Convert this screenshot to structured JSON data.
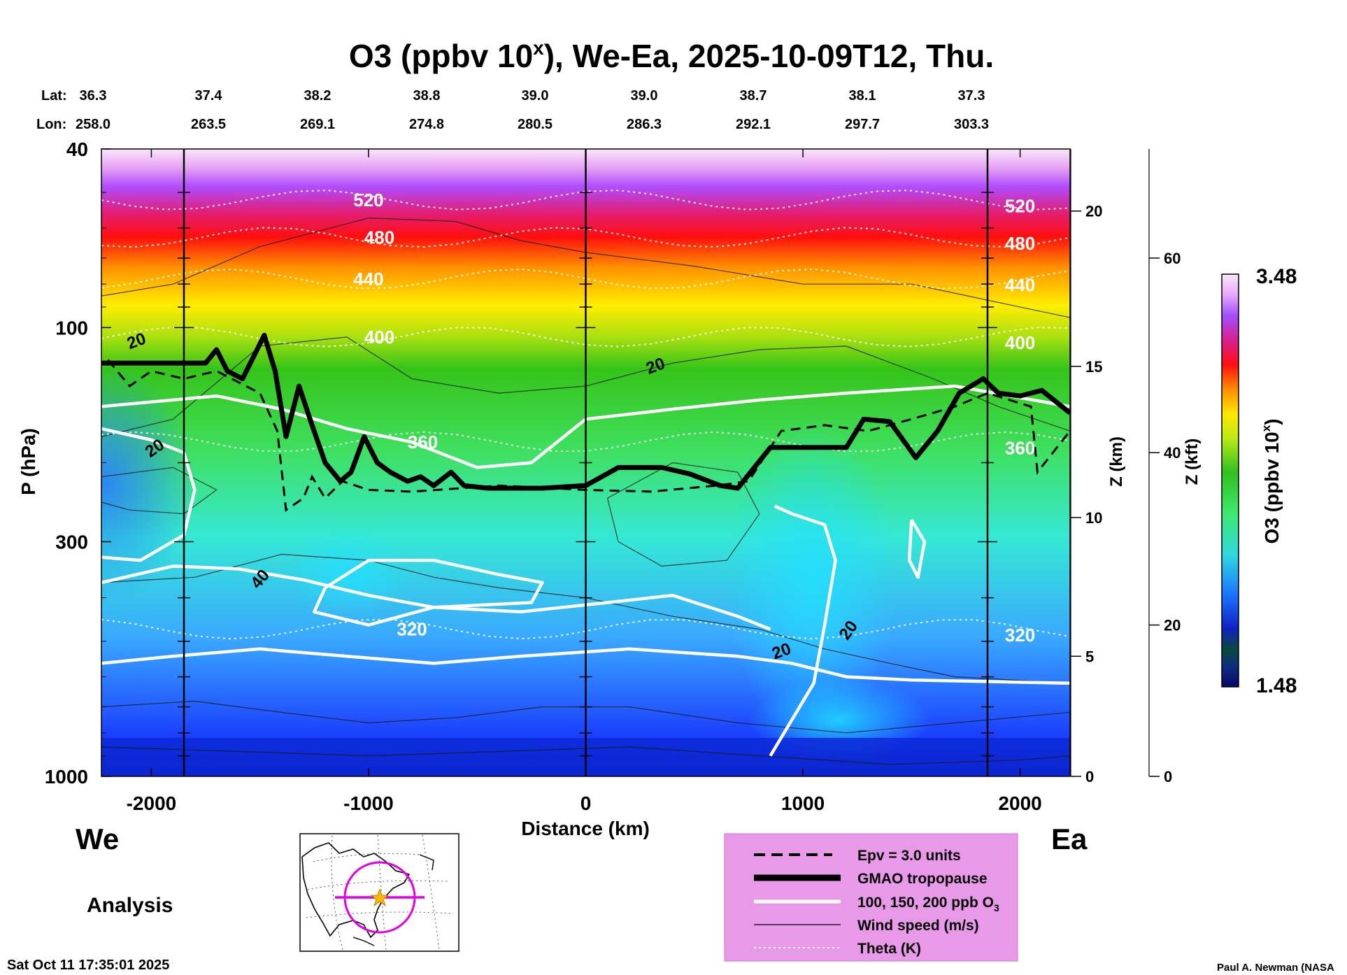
{
  "chart_data": {
    "type": "heatmap",
    "title": {
      "main": "O3 (ppbv 10",
      "sup": "x",
      "rest": "), We-Ea, 2025-10-09T12, Thu."
    },
    "xlabel": "Distance (km)",
    "ylabel": "P (hPa)",
    "xlim": [
      -2230,
      2230
    ],
    "ylim": [
      1000,
      40
    ],
    "yscale": "log",
    "x_ticks": [
      -2000,
      -1000,
      0,
      1000,
      2000
    ],
    "x_tick_labels": [
      "-2000",
      "-1000",
      "0",
      "1000",
      "2000"
    ],
    "y_ticks": [
      40,
      100,
      300,
      1000
    ],
    "y_tick_labels": [
      "40",
      "100",
      "300",
      "1000"
    ],
    "lat_label": "Lat:",
    "lon_label": "Lon:",
    "positions": [
      {
        "lat": "36.3",
        "lon": "258.0"
      },
      {
        "lat": "37.4",
        "lon": "263.5"
      },
      {
        "lat": "38.2",
        "lon": "269.1"
      },
      {
        "lat": "38.8",
        "lon": "274.8"
      },
      {
        "lat": "39.0",
        "lon": "280.5"
      },
      {
        "lat": "39.0",
        "lon": "286.3"
      },
      {
        "lat": "38.7",
        "lon": "292.1"
      },
      {
        "lat": "38.1",
        "lon": "297.7"
      },
      {
        "lat": "37.3",
        "lon": "303.3"
      }
    ],
    "z_km_axis": {
      "label": "Z (km)",
      "ticks": [
        0,
        5,
        10,
        15,
        20
      ],
      "tick_labels": [
        "0",
        "5",
        "10",
        "15",
        "20"
      ],
      "pressure_hpa": [
        1000,
        540,
        265,
        122,
        55
      ]
    },
    "z_kft_axis": {
      "label": "Z (kft)",
      "ticks": [
        0,
        20,
        40,
        60
      ],
      "tick_labels": [
        "0",
        "20",
        "40",
        "60"
      ],
      "pressure_hpa": [
        1000,
        460,
        190,
        70
      ]
    },
    "colorbar": {
      "label": "O3 (ppbv 10",
      "label_sup": "x",
      "label_end": ")",
      "min": 1.48,
      "max": 3.48,
      "min_label": "1.48",
      "max_label": "3.48"
    },
    "vertical_markers_km": [
      -1850,
      0,
      1850
    ],
    "tropopause_km_hpa": [
      [
        -2230,
        120
      ],
      [
        -1750,
        120
      ],
      [
        -1700,
        112
      ],
      [
        -1650,
        125
      ],
      [
        -1580,
        130
      ],
      [
        -1480,
        104
      ],
      [
        -1430,
        125
      ],
      [
        -1380,
        175
      ],
      [
        -1320,
        135
      ],
      [
        -1260,
        165
      ],
      [
        -1200,
        200
      ],
      [
        -1130,
        220
      ],
      [
        -1080,
        210
      ],
      [
        -1020,
        175
      ],
      [
        -960,
        200
      ],
      [
        -900,
        210
      ],
      [
        -820,
        220
      ],
      [
        -760,
        215
      ],
      [
        -700,
        225
      ],
      [
        -620,
        210
      ],
      [
        -560,
        225
      ],
      [
        -450,
        228
      ],
      [
        -200,
        228
      ],
      [
        0,
        225
      ],
      [
        150,
        205
      ],
      [
        350,
        205
      ],
      [
        480,
        212
      ],
      [
        620,
        225
      ],
      [
        700,
        228
      ],
      [
        850,
        185
      ],
      [
        1000,
        185
      ],
      [
        1200,
        185
      ],
      [
        1280,
        160
      ],
      [
        1400,
        162
      ],
      [
        1520,
        195
      ],
      [
        1620,
        170
      ],
      [
        1720,
        140
      ],
      [
        1830,
        130
      ],
      [
        1900,
        140
      ],
      [
        2000,
        142
      ],
      [
        2100,
        138
      ],
      [
        2230,
        155
      ]
    ],
    "epv_contour_km_hpa": [
      [
        -2200,
        118
      ],
      [
        -2100,
        135
      ],
      [
        -2000,
        125
      ],
      [
        -1850,
        130
      ],
      [
        -1700,
        125
      ],
      [
        -1500,
        140
      ],
      [
        -1420,
        170
      ],
      [
        -1380,
        255
      ],
      [
        -1300,
        240
      ],
      [
        -1260,
        215
      ],
      [
        -1200,
        240
      ],
      [
        -1120,
        220
      ],
      [
        -1000,
        230
      ],
      [
        -800,
        232
      ],
      [
        -400,
        225
      ],
      [
        0,
        230
      ],
      [
        300,
        232
      ],
      [
        600,
        225
      ],
      [
        750,
        220
      ],
      [
        900,
        170
      ],
      [
        1100,
        165
      ],
      [
        1300,
        170
      ],
      [
        1500,
        160
      ],
      [
        1700,
        150
      ],
      [
        1850,
        140
      ],
      [
        2050,
        150
      ],
      [
        2080,
        210
      ],
      [
        2230,
        170
      ]
    ],
    "theta_levels": [
      {
        "label": "520",
        "hpa": 52
      },
      {
        "label": "480",
        "hpa": 63
      },
      {
        "label": "440",
        "hpa": 78
      },
      {
        "label": "400",
        "hpa": 105
      },
      {
        "label": "360",
        "hpa": 180
      },
      {
        "label": "320",
        "hpa": 470
      }
    ],
    "wind_labels": [
      "20",
      "20",
      "40",
      "20",
      "20",
      "20"
    ],
    "legend": [
      {
        "label": "Epv = 3.0 units",
        "style": "dashed"
      },
      {
        "label": "GMAO tropopause",
        "style": "thick"
      },
      {
        "label": "100, 150, 200 ppb O",
        "sub": "3",
        "style": "white"
      },
      {
        "label": "Wind speed (m/s)",
        "style": "thin"
      },
      {
        "label": "Theta (K)",
        "style": "dotted"
      }
    ],
    "corner_left": "We",
    "corner_right": "Ea",
    "analysis_label": "Analysis",
    "timestamp": "Sat Oct 11 17:35:01 2025",
    "credit": "Paul A. Newman (NASA"
  }
}
